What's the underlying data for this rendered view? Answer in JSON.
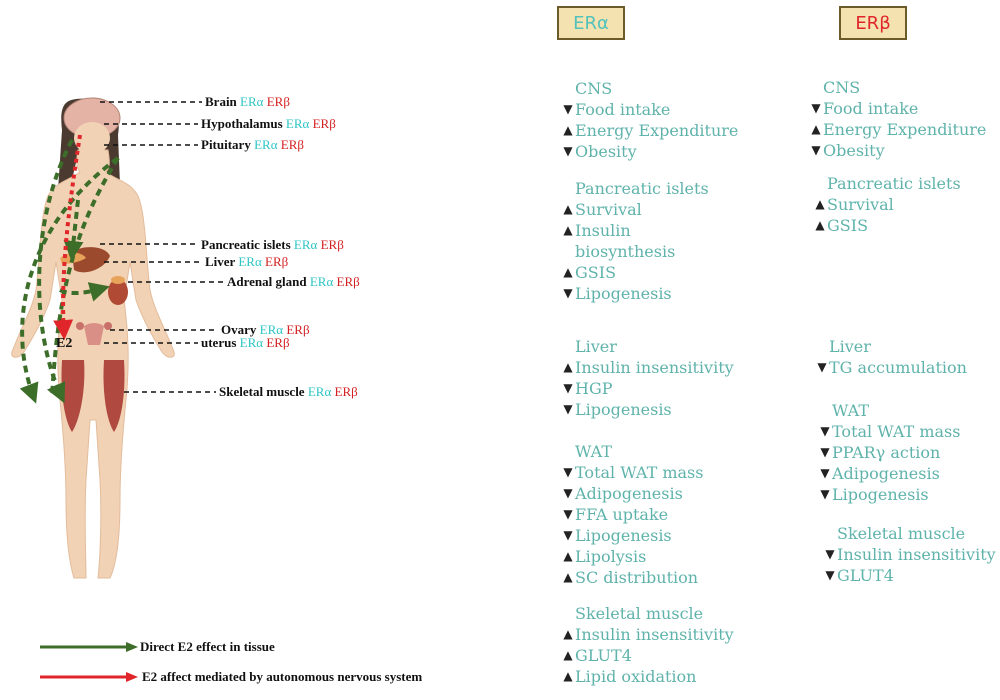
{
  "headers": {
    "era": "ERα",
    "erb": "ERβ"
  },
  "labels": {
    "brain": {
      "name": "Brain",
      "a": "ERα",
      "b": "ERβ"
    },
    "hypothalamus": {
      "name": "Hypothalamus",
      "a": "ERα",
      "b": "ERβ"
    },
    "pituitary": {
      "name": "Pituitary",
      "a": "ERα",
      "b": "ERβ"
    },
    "pancreatic": {
      "name": "Pancreatic islets",
      "a": "ERα",
      "b": "ERβ"
    },
    "liver": {
      "name": "Liver",
      "a": "ERα",
      "b": "ERβ"
    },
    "adrenal": {
      "name": "Adrenal gland",
      "a": "ERα",
      "b": "ERβ"
    },
    "ovary": {
      "name": "Ovary",
      "a": "ERα",
      "b": "ERβ"
    },
    "uterus": {
      "name": "uterus",
      "a": "ERα",
      "b": "ERβ"
    },
    "muscle": {
      "name": "Skeletal muscle",
      "a": "ERα",
      "b": "ERβ"
    }
  },
  "e2_label": "E2",
  "era": {
    "cns": {
      "title": "CNS",
      "items": [
        "Food intake",
        "Energy Expenditure",
        "Obesity"
      ]
    },
    "pancreas": {
      "title": "Pancreatic islets",
      "items": [
        "Survival",
        "Insulin",
        "GSIS",
        "Lipogenesis"
      ],
      "insulin_cont": "biosynthesis"
    },
    "liver": {
      "title": "Liver",
      "items": [
        "Insulin insensitivity",
        "HGP",
        "Lipogenesis"
      ]
    },
    "wat": {
      "title": "WAT",
      "items": [
        "Total WAT mass",
        "Adipogenesis",
        "FFA uptake",
        "Lipogenesis",
        "Lipolysis",
        "SC distribution"
      ]
    },
    "muscle": {
      "title": "Skeletal muscle",
      "items": [
        "Insulin insensitivity",
        "GLUT4",
        "Lipid oxidation"
      ]
    }
  },
  "erb": {
    "cns": {
      "title": "CNS",
      "items": [
        "Food intake",
        "Energy Expenditure",
        "Obesity"
      ]
    },
    "pancreas": {
      "title": "Pancreatic islets",
      "items": [
        "Survival",
        "GSIS"
      ]
    },
    "liver": {
      "title": "Liver",
      "items": [
        "TG accumulation"
      ]
    },
    "wat": {
      "title": "WAT",
      "items": [
        "Total WAT mass",
        "PPARγ action",
        "Adipogenesis",
        "Lipogenesis"
      ]
    },
    "muscle": {
      "title": "Skeletal muscle",
      "items": [
        "Insulin insensitivity",
        "GLUT4"
      ]
    }
  },
  "arrows": {
    "up": "▲",
    "down": "▼"
  },
  "legend": {
    "direct": "Direct E2 effect in tissue",
    "autonomic": "E2 affect mediated by autonomous nervous system",
    "direct_color": "#3c6e2a",
    "autonomic_color": "#e0262a"
  }
}
